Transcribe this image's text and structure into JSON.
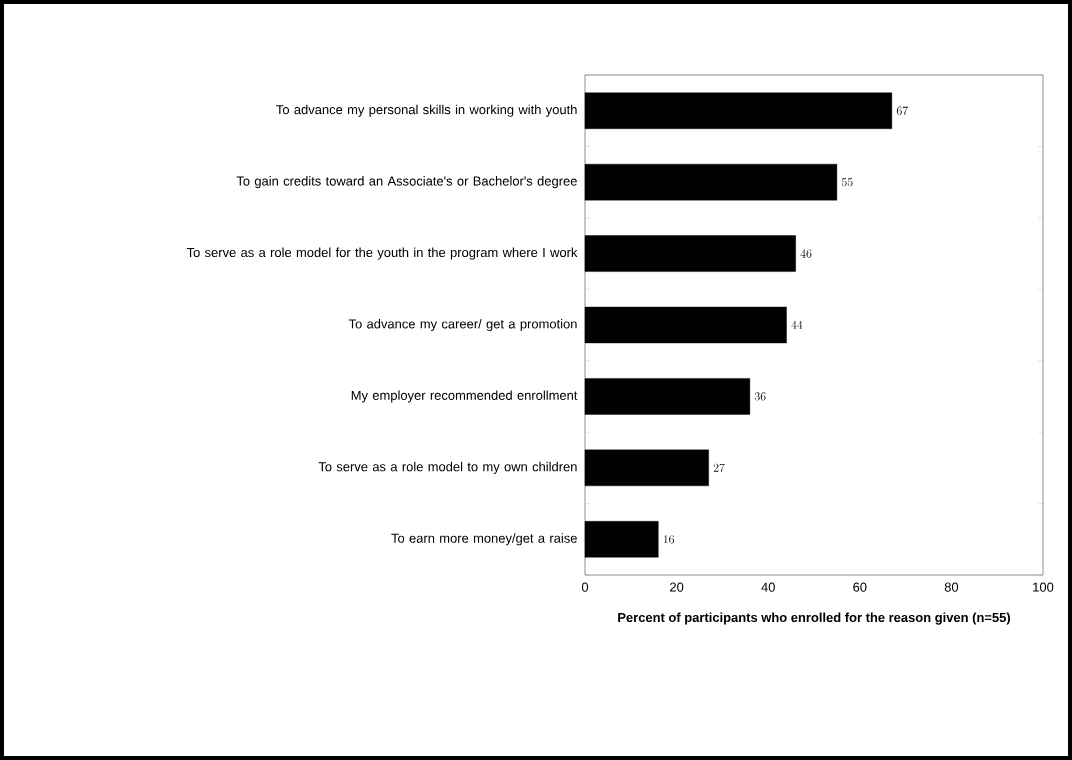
{
  "chart_data": {
    "type": "bar",
    "orientation": "horizontal",
    "xlabel": "Percent of participants who enrolled for the reason given (n=55)",
    "categories": [
      "To advance my personal skills in working with youth",
      "To gain credits toward an Associate's or Bachelor's degree",
      "To serve as a role model for the youth in the program where I work",
      "To advance my career/ get a promotion",
      "My employer recommended enrollment",
      "To serve as a role model to my own children",
      "To earn more money/get a raise"
    ],
    "values": [
      67,
      55,
      46,
      44,
      36,
      27,
      16
    ],
    "color": "#000000",
    "xlim": [
      0,
      100
    ],
    "xticks": [
      0,
      20,
      40,
      60,
      80,
      100
    ],
    "data_labels": true,
    "grid": false
  }
}
